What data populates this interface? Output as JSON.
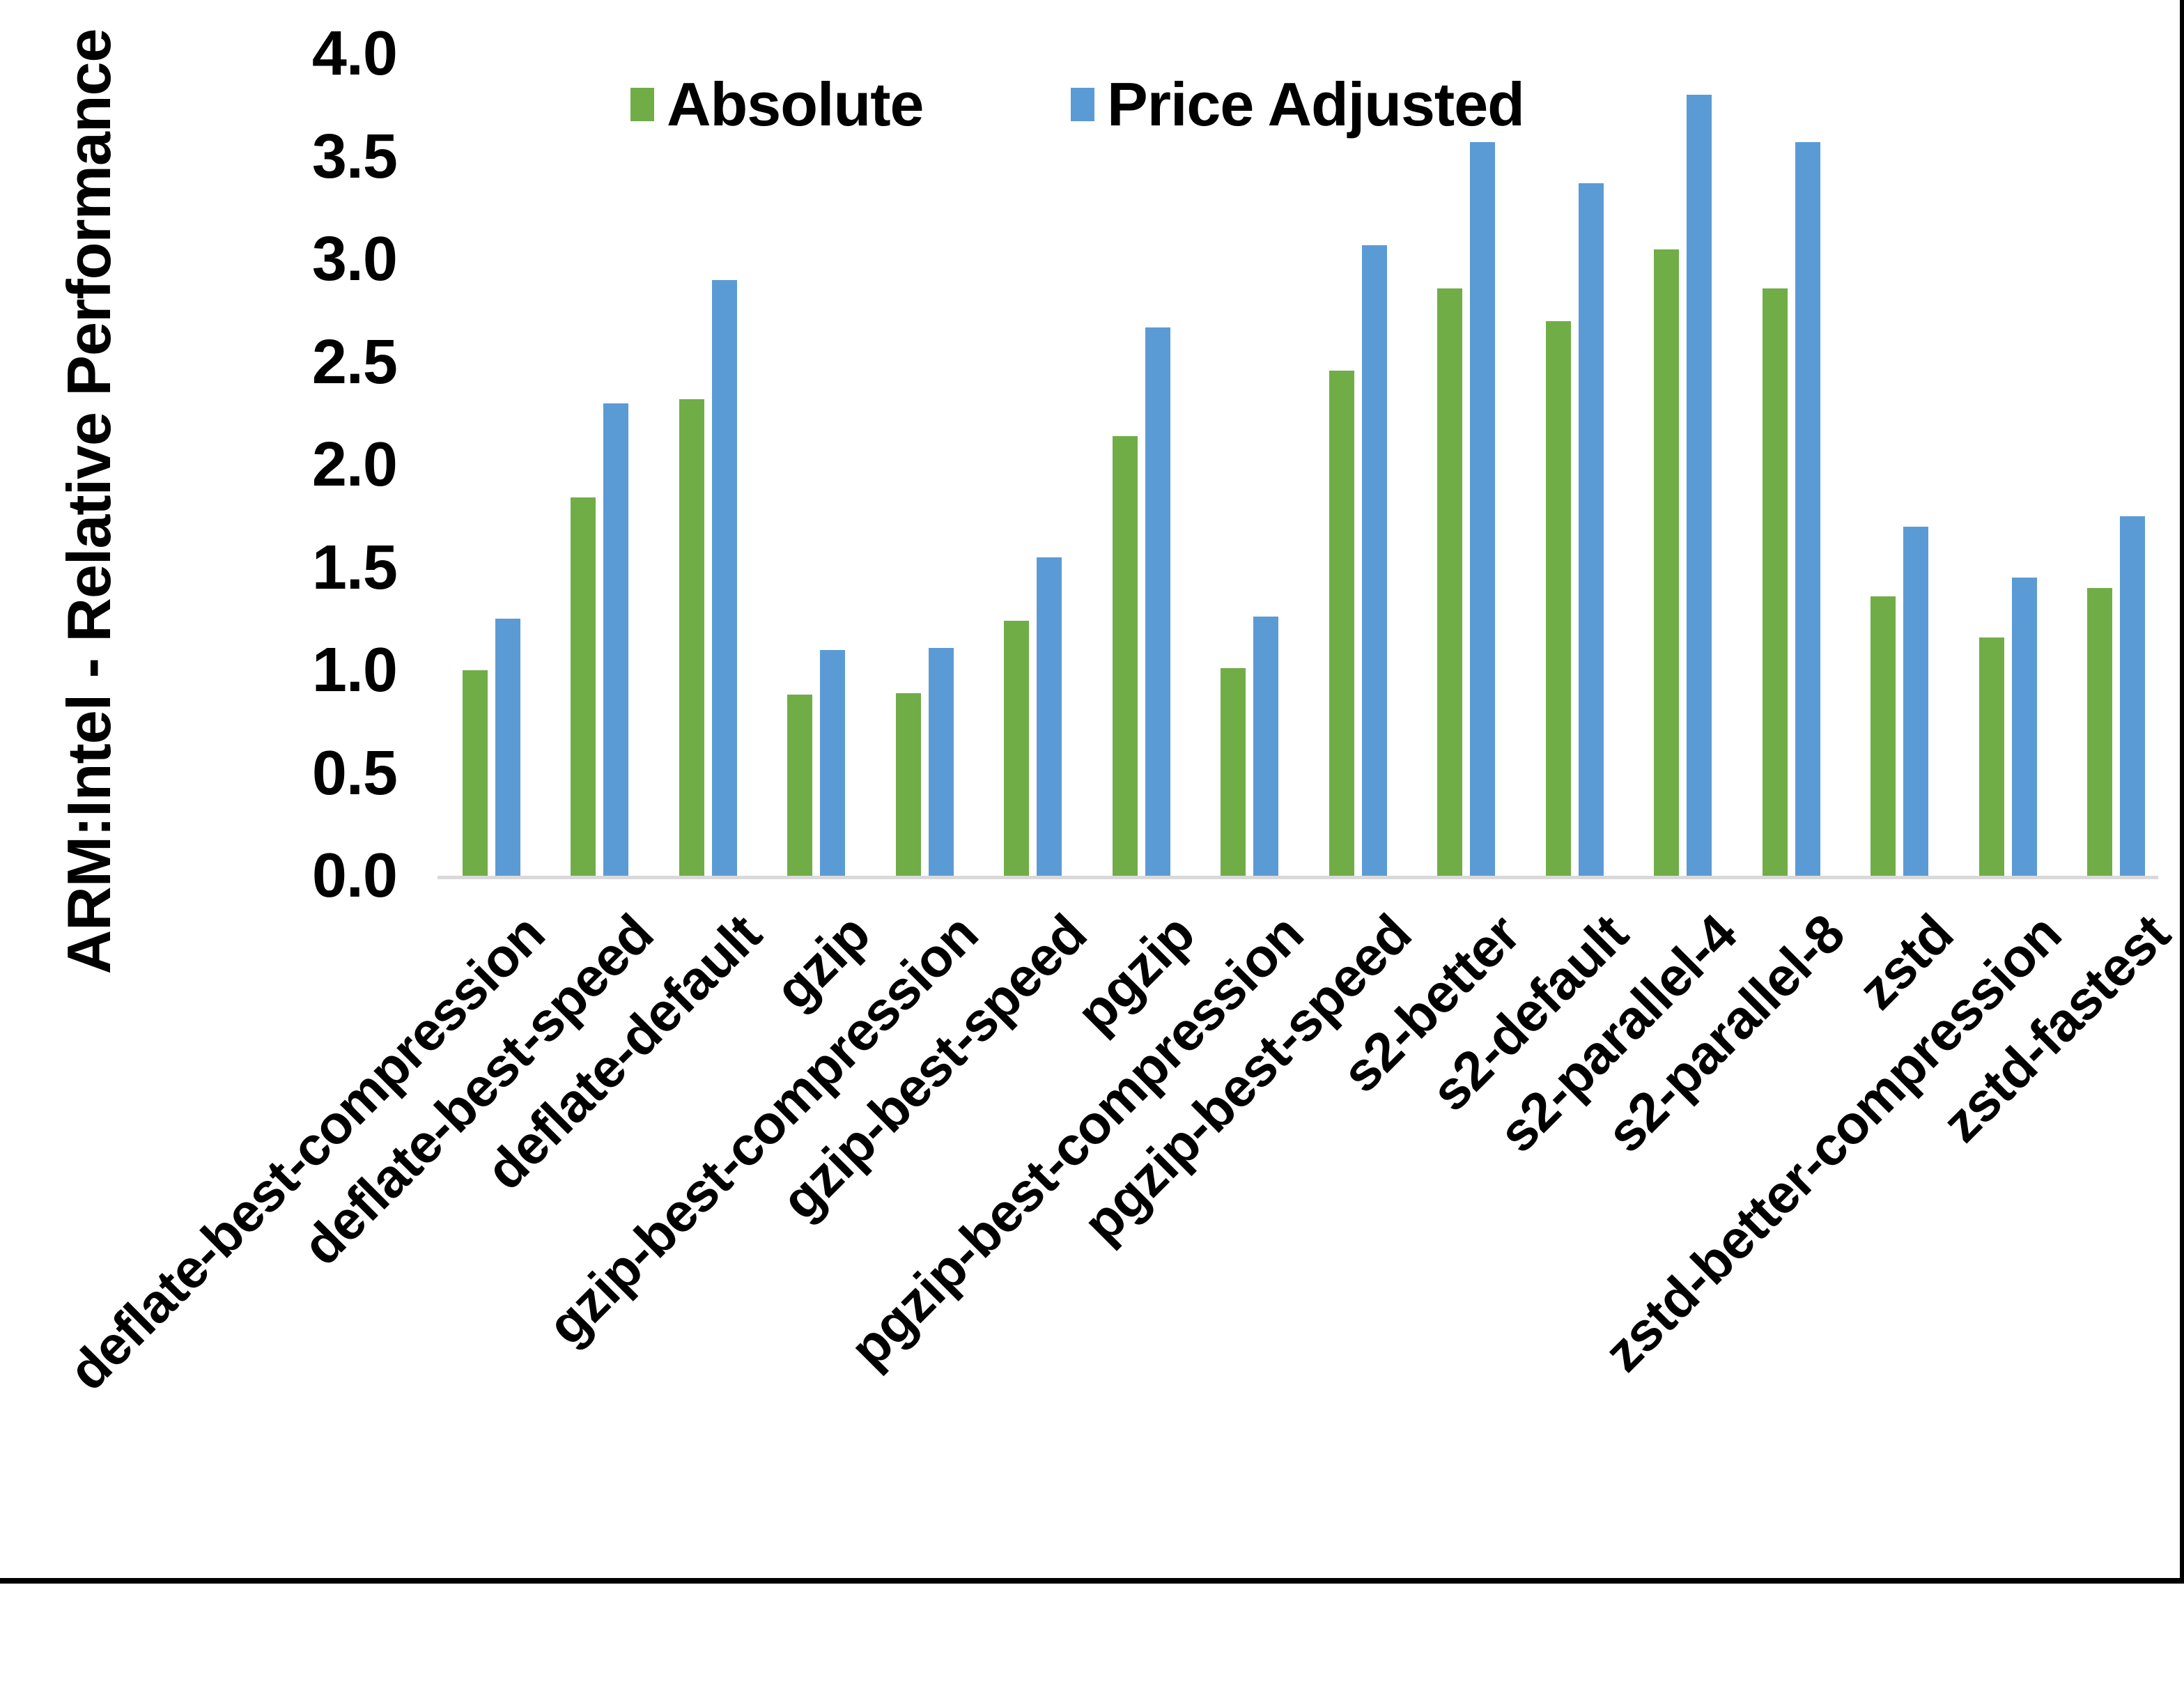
{
  "y_axis": {
    "title": "ARM:Intel - Relative Performance",
    "tick_labels": [
      "0.0",
      "0.5",
      "1.0",
      "1.5",
      "2.0",
      "2.5",
      "3.0",
      "3.5",
      "4.0"
    ],
    "min": 0,
    "max": 4
  },
  "legend": {
    "items": [
      {
        "label": "Absolute",
        "color": "#70AD47"
      },
      {
        "label": "Price Adjusted",
        "color": "#5B9BD5"
      }
    ]
  },
  "colors": {
    "absolute_green": "#70AD47",
    "price_adjusted_blue": "#5B9BD5",
    "axis_line_gray": "#D9D9D9",
    "text_black": "#000000"
  },
  "chart_data": {
    "type": "bar",
    "categories": [
      "deflate-best-compression",
      "deflate-best-speed",
      "deflate-default",
      "gzip",
      "gzip-best-compression",
      "gzip-best-speed",
      "pgzip",
      "pgzip-best-compression",
      "pgzip-best-speed",
      "s2-better",
      "s2-default",
      "s2-parallel-4",
      "s2-parallel-8",
      "zstd",
      "zstd-better-compression",
      "zstd-fastest"
    ],
    "series": [
      {
        "name": "Absolute",
        "color": "#70AD47",
        "values": [
          1.0,
          1.84,
          2.32,
          0.88,
          0.89,
          1.24,
          2.14,
          1.01,
          2.46,
          2.86,
          2.7,
          3.05,
          2.86,
          1.36,
          1.16,
          1.4
        ]
      },
      {
        "name": "Price Adjusted",
        "color": "#5B9BD5",
        "values": [
          1.25,
          2.3,
          2.9,
          1.1,
          1.11,
          1.55,
          2.67,
          1.26,
          3.07,
          3.57,
          3.37,
          3.8,
          3.57,
          1.7,
          1.45,
          1.75
        ]
      }
    ],
    "title": "",
    "xlabel": "",
    "ylabel": "ARM:Intel - Relative Performance",
    "ylim": [
      0,
      4
    ],
    "ytick_step": 0.5,
    "grid": false,
    "legend_position": "top-center",
    "x_tick_rotation_deg": 45
  }
}
